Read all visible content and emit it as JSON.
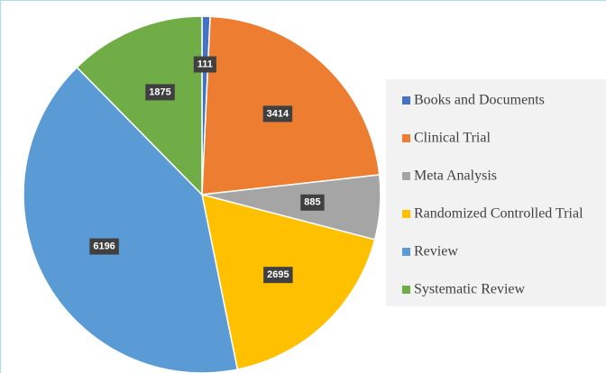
{
  "chart_data": {
    "type": "pie",
    "categories": [
      "Books and Documents",
      "Clinical Trial",
      "Meta Analysis",
      "Randomized Controlled Trial",
      "Review",
      "Systematic Review"
    ],
    "values": [
      111,
      3414,
      885,
      2695,
      6196,
      1875
    ],
    "colors": [
      "#4472c4",
      "#ed7d31",
      "#a5a5a5",
      "#ffc000",
      "#5b9bd5",
      "#70ad47"
    ],
    "legend": "right"
  }
}
